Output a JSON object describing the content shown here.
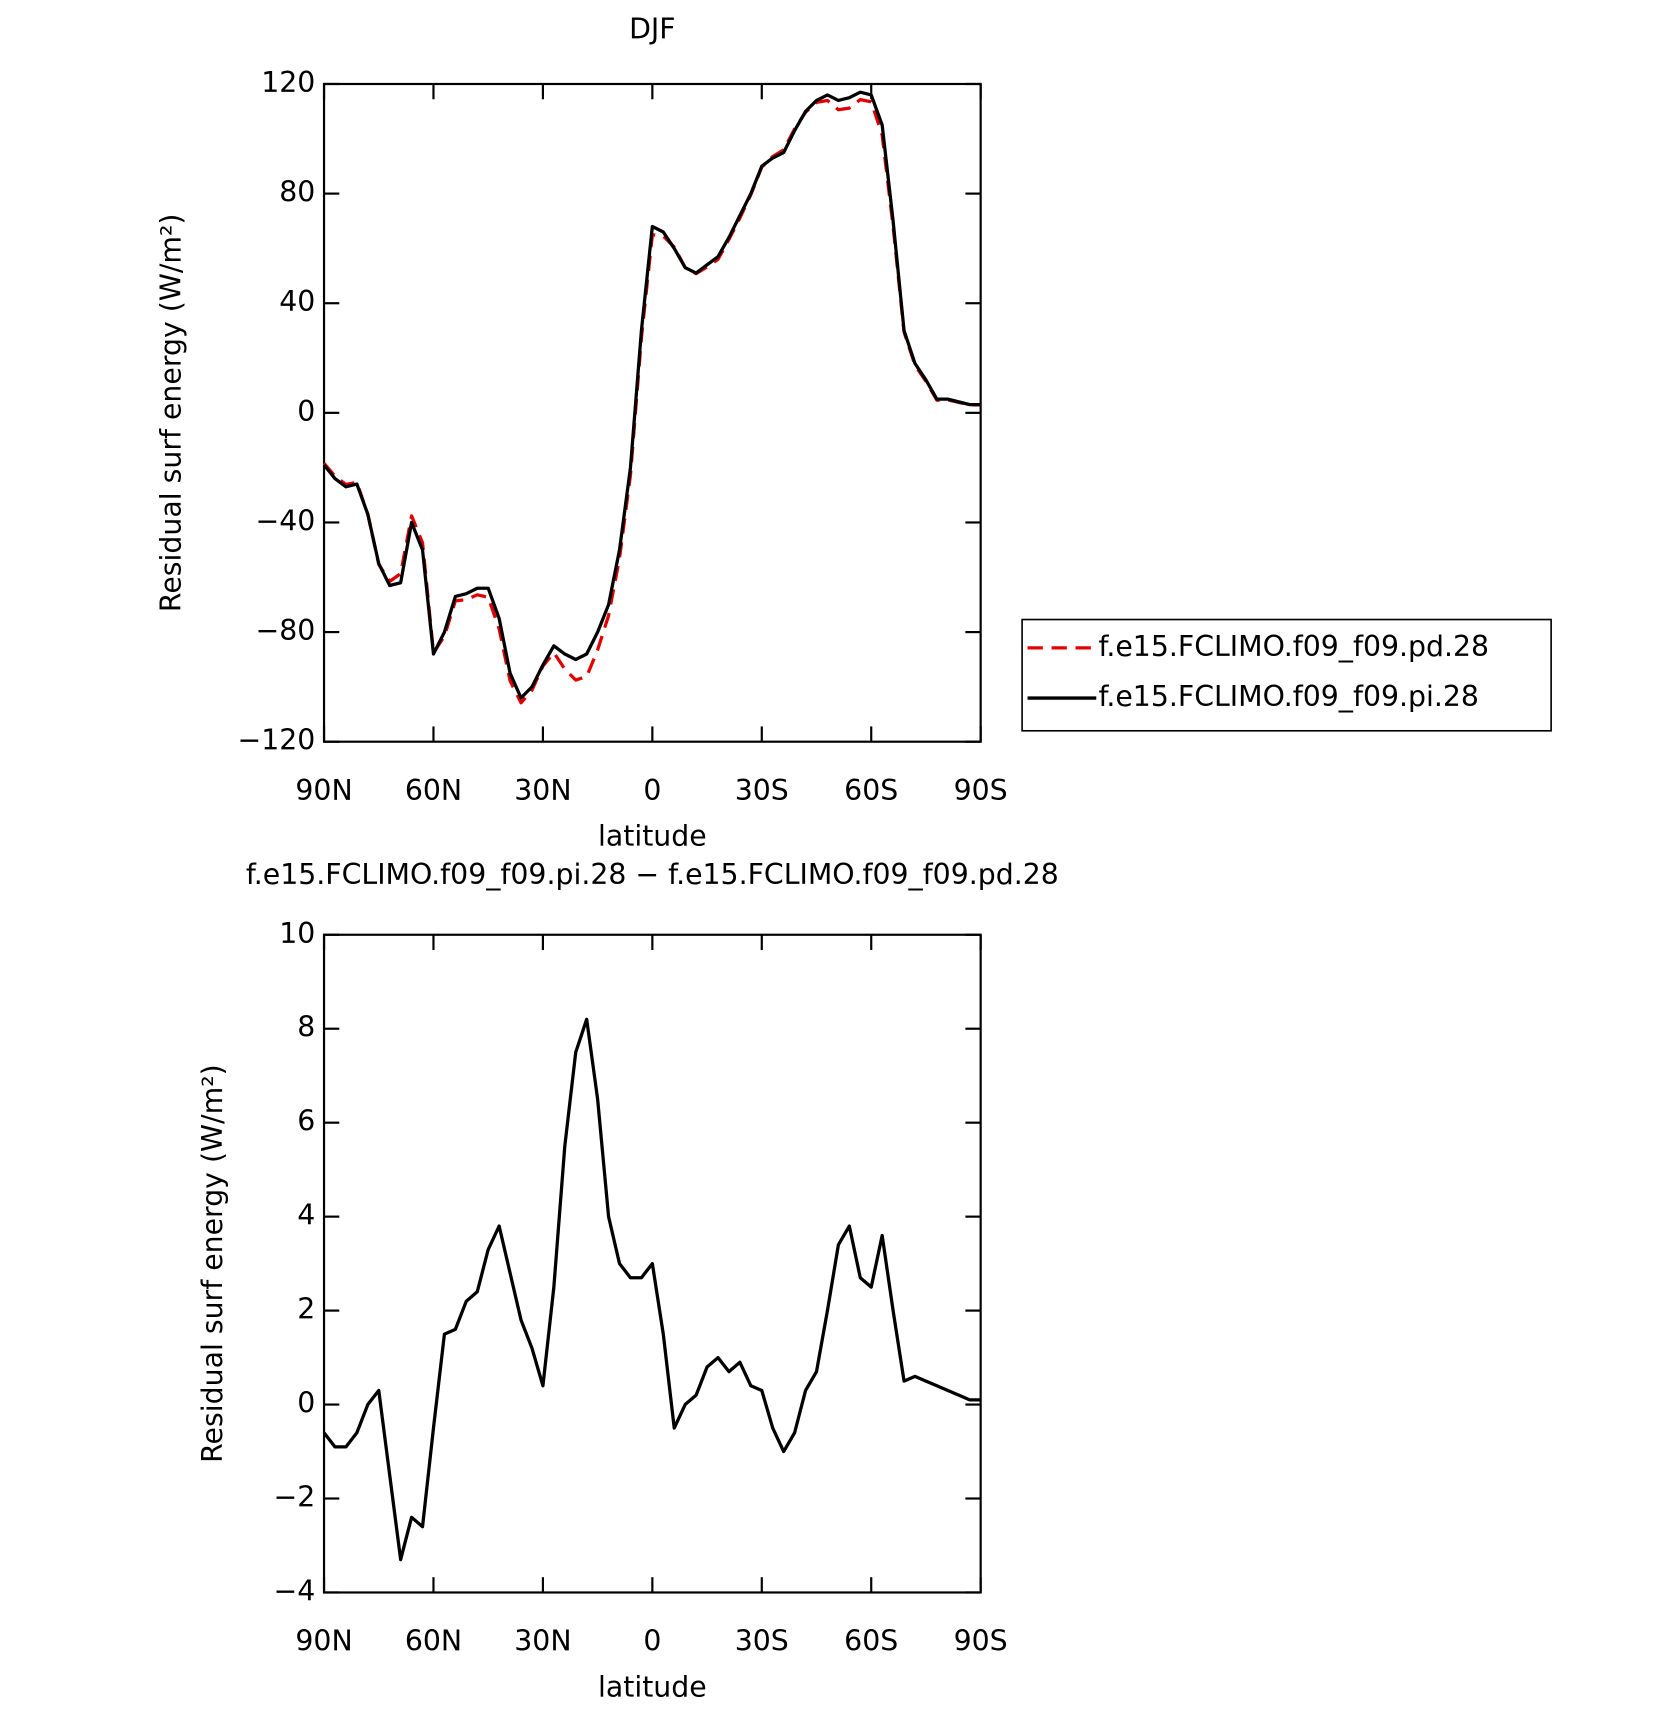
{
  "chart_data": [
    {
      "type": "line",
      "title": "DJF",
      "xlabel": "latitude",
      "ylabel": "Residual surf energy (W/m²)",
      "x": [
        90,
        87,
        84,
        81,
        78,
        75,
        72,
        69,
        66,
        63,
        60,
        57,
        54,
        51,
        48,
        45,
        42,
        39,
        36,
        33,
        30,
        27,
        24,
        21,
        18,
        15,
        12,
        9,
        6,
        3,
        0,
        -3,
        -6,
        -9,
        -12,
        -15,
        -18,
        -21,
        -24,
        -27,
        -30,
        -33,
        -36,
        -39,
        -42,
        -45,
        -48,
        -51,
        -54,
        -57,
        -60,
        -63,
        -66,
        -69,
        -72,
        -75,
        -78,
        -81,
        -84,
        -87,
        -90
      ],
      "series": [
        {
          "name": "f.e15.FCLIMO.f09_f09.pd.28",
          "color": "#e00000",
          "dash": "dashed",
          "values": [
            -18.4,
            -23.1,
            -26.1,
            -25.4,
            -37,
            -55.3,
            -61.5,
            -58.7,
            -37.6,
            -47.4,
            -87.5,
            -81.5,
            -68.6,
            -68.2,
            -66.4,
            -67.3,
            -78.8,
            -97.8,
            -105.8,
            -101.2,
            -92.4,
            -87.5,
            -93.5,
            -97.5,
            -96.2,
            -86.5,
            -74,
            -53,
            -22.7,
            27.3,
            65,
            64.5,
            60.5,
            53,
            50.8,
            53.2,
            56,
            63.3,
            71.1,
            79.6,
            89.7,
            93.5,
            96,
            103.6,
            109.7,
            113.3,
            114,
            110.6,
            111.2,
            114.3,
            113.5,
            101.4,
            68,
            29.5,
            17.4,
            11.5,
            4.6,
            4.7,
            3.8,
            2.9,
            2.9
          ]
        },
        {
          "name": "f.e15.FCLIMO.f09_f09.pi.28",
          "color": "#000000",
          "dash": "solid",
          "values": [
            -19,
            -24,
            -27,
            -26,
            -37,
            -55,
            -63,
            -62,
            -40,
            -50,
            -88,
            -80,
            -67,
            -66,
            -64,
            -64,
            -75,
            -95,
            -104,
            -100,
            -92,
            -85,
            -88,
            -90,
            -88,
            -80,
            -70,
            -50,
            -20,
            30,
            68,
            66,
            60,
            53,
            51,
            54,
            57,
            64,
            72,
            80,
            90,
            93,
            95,
            103,
            110,
            114,
            116,
            114,
            115,
            117,
            116,
            105,
            70,
            30,
            18,
            12,
            5,
            5,
            4,
            3,
            3
          ]
        }
      ],
      "xlim": [
        90,
        -90
      ],
      "xticks": [
        {
          "value": 90,
          "label": "90N"
        },
        {
          "value": 60,
          "label": "60N"
        },
        {
          "value": 30,
          "label": "30N"
        },
        0,
        {
          "value": -30,
          "label": "30S"
        },
        {
          "value": -60,
          "label": "60S"
        },
        {
          "value": -90,
          "label": "90S"
        }
      ],
      "ylim": [
        -120,
        120
      ],
      "yticks": [
        {
          "value": -120,
          "label": "−120"
        },
        {
          "value": -80,
          "label": "−80"
        },
        {
          "value": -40,
          "label": "−40"
        },
        0,
        40,
        80,
        120
      ],
      "legend": "right"
    },
    {
      "type": "line",
      "title": "f.e15.FCLIMO.f09_f09.pi.28 − f.e15.FCLIMO.f09_f09.pd.28",
      "xlabel": "latitude",
      "ylabel": "Residual surf energy (W/m²)",
      "x": [
        90,
        87,
        84,
        81,
        78,
        75,
        72,
        69,
        66,
        63,
        60,
        57,
        54,
        51,
        48,
        45,
        42,
        39,
        36,
        33,
        30,
        27,
        24,
        21,
        18,
        15,
        12,
        9,
        6,
        3,
        0,
        -3,
        -6,
        -9,
        -12,
        -15,
        -18,
        -21,
        -24,
        -27,
        -30,
        -33,
        -36,
        -39,
        -42,
        -45,
        -48,
        -51,
        -54,
        -57,
        -60,
        -63,
        -66,
        -69,
        -72,
        -75,
        -78,
        -81,
        -84,
        -87,
        -90
      ],
      "values": [
        -0.6,
        -0.9,
        -0.9,
        -0.6,
        0,
        0.3,
        -1.5,
        -3.3,
        -2.4,
        -2.6,
        -0.5,
        1.5,
        1.6,
        2.2,
        2.4,
        3.3,
        3.8,
        2.8,
        1.8,
        1.2,
        0.4,
        2.5,
        5.5,
        7.5,
        8.2,
        6.5,
        4.0,
        3.0,
        2.7,
        2.7,
        3.0,
        1.5,
        -0.5,
        0,
        0.2,
        0.8,
        1.0,
        0.7,
        0.9,
        0.4,
        0.3,
        -0.5,
        -1.0,
        -0.6,
        0.3,
        0.7,
        2.0,
        3.4,
        3.8,
        2.7,
        2.5,
        3.6,
        2.0,
        0.5,
        0.6,
        0.5,
        0.4,
        0.3,
        0.2,
        0.1,
        0.1
      ],
      "color": "#000000",
      "xlim": [
        90,
        -90
      ],
      "xticks": [
        {
          "value": 90,
          "label": "90N"
        },
        {
          "value": 60,
          "label": "60N"
        },
        {
          "value": 30,
          "label": "30N"
        },
        0,
        {
          "value": -30,
          "label": "30S"
        },
        {
          "value": -60,
          "label": "60S"
        },
        {
          "value": -90,
          "label": "90S"
        }
      ],
      "ylim": [
        -4,
        10
      ],
      "yticks": [
        {
          "value": -4,
          "label": "−4"
        },
        {
          "value": -2,
          "label": "−2"
        },
        0,
        2,
        4,
        6,
        8,
        10
      ]
    }
  ]
}
